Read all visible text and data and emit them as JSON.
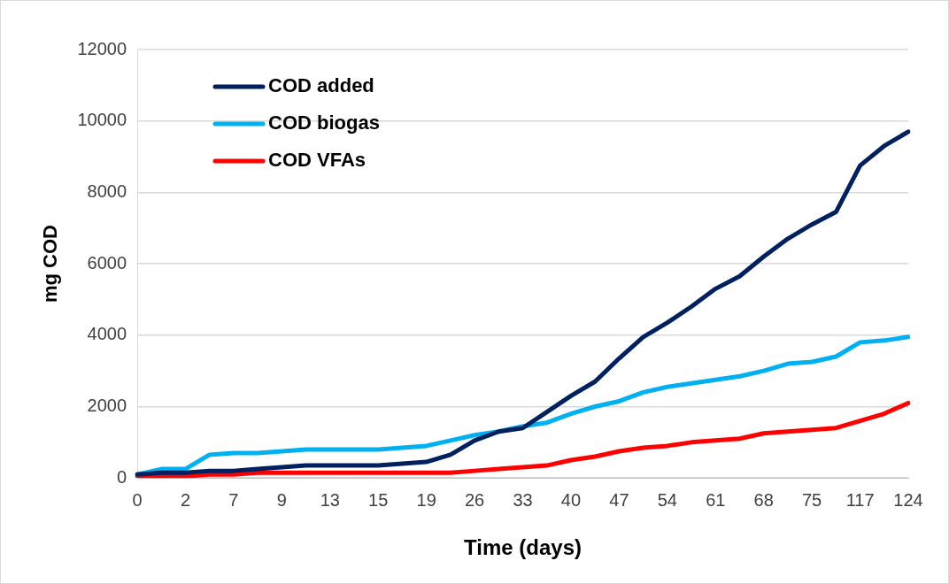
{
  "chart_data": {
    "type": "line",
    "xlabel": "Time (days)",
    "ylabel": "mg COD",
    "categories": [
      "0",
      null,
      "2",
      null,
      "7",
      null,
      "9",
      null,
      "13",
      null,
      "15",
      null,
      "19",
      null,
      "26",
      null,
      "33",
      null,
      "40",
      null,
      "47",
      null,
      "54",
      null,
      "61",
      null,
      "68",
      null,
      "75",
      null,
      "117",
      null,
      "124"
    ],
    "series": [
      {
        "name": "COD added",
        "color": "#002060",
        "values": [
          100,
          150,
          150,
          200,
          200,
          250,
          300,
          350,
          350,
          350,
          350,
          400,
          450,
          650,
          1050,
          1300,
          1400,
          1850,
          2300,
          2700,
          3350,
          3950,
          4350,
          4800,
          5300,
          5650,
          6200,
          6700,
          7100,
          7450,
          8750,
          9300,
          9700
        ]
      },
      {
        "name": "COD biogas",
        "color": "#00b0f0",
        "values": [
          100,
          250,
          250,
          650,
          700,
          700,
          750,
          800,
          800,
          800,
          800,
          850,
          900,
          1050,
          1200,
          1300,
          1450,
          1550,
          1800,
          2000,
          2150,
          2400,
          2550,
          2650,
          2750,
          2850,
          3000,
          3200,
          3250,
          3400,
          3800,
          3850,
          3950
        ]
      },
      {
        "name": "COD VFAs",
        "color": "#ff0000",
        "values": [
          50,
          50,
          50,
          100,
          100,
          150,
          150,
          150,
          150,
          150,
          150,
          150,
          150,
          150,
          200,
          250,
          300,
          350,
          500,
          600,
          750,
          850,
          900,
          1000,
          1050,
          1100,
          1250,
          1300,
          1350,
          1400,
          1600,
          1800,
          2100
        ]
      }
    ],
    "ylim": [
      0,
      12000
    ],
    "yticks": [
      0,
      2000,
      4000,
      6000,
      8000,
      10000,
      12000
    ],
    "grid": "y",
    "legend": "top left",
    "marker": "none",
    "line_style": "solid"
  }
}
